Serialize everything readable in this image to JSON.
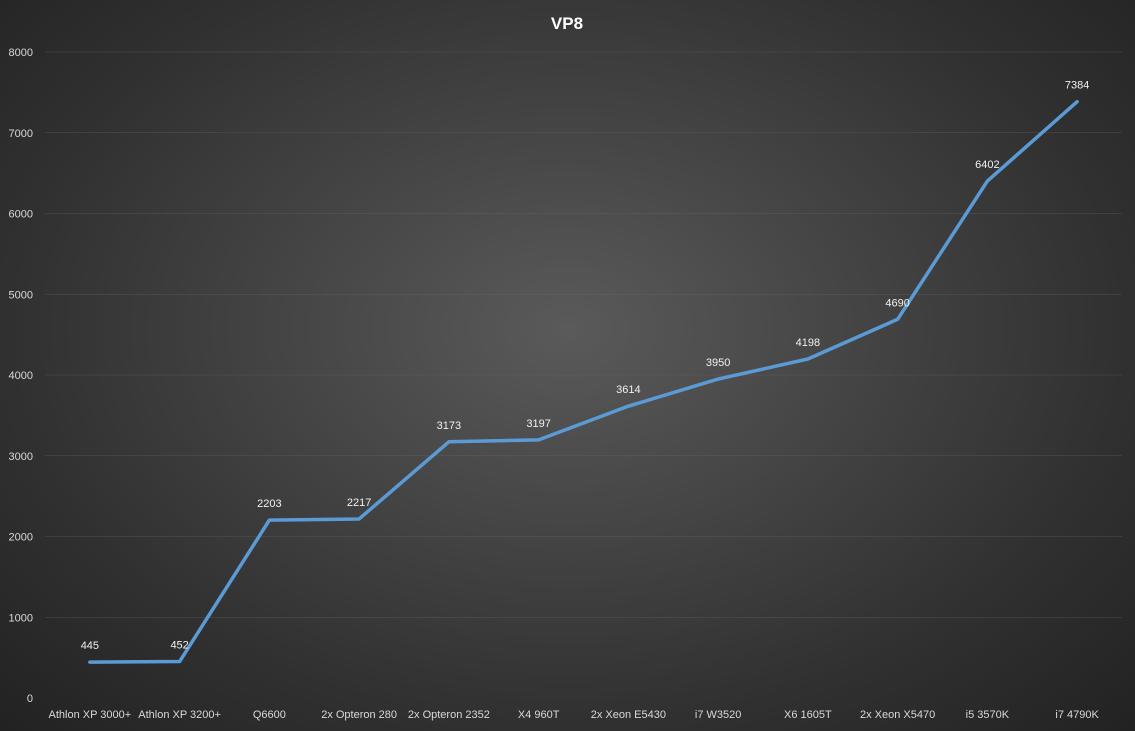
{
  "chart_data": {
    "type": "line",
    "title": "VP8",
    "xlabel": "",
    "ylabel": "",
    "categories": [
      "Athlon XP 3000+",
      "Athlon XP 3200+",
      "Q6600",
      "2x Opteron 280",
      "2x Opteron 2352",
      "X4 960T",
      "2x Xeon E5430",
      "i7 W3520",
      "X6 1605T",
      "2x Xeon X5470",
      "i5 3570K",
      "i7 4790K"
    ],
    "series": [
      {
        "values": [
          445,
          452,
          2203,
          2217,
          3173,
          3197,
          3614,
          3950,
          4198,
          4690,
          6402,
          7384
        ]
      }
    ],
    "ylim": [
      0,
      8000
    ],
    "yticks": [
      0,
      1000,
      2000,
      3000,
      4000,
      5000,
      6000,
      7000,
      8000
    ],
    "grid": true,
    "legend": "none",
    "colors": {
      "line": "#5b9bd5",
      "background": "#404040",
      "text": "#d9d9d9"
    }
  }
}
